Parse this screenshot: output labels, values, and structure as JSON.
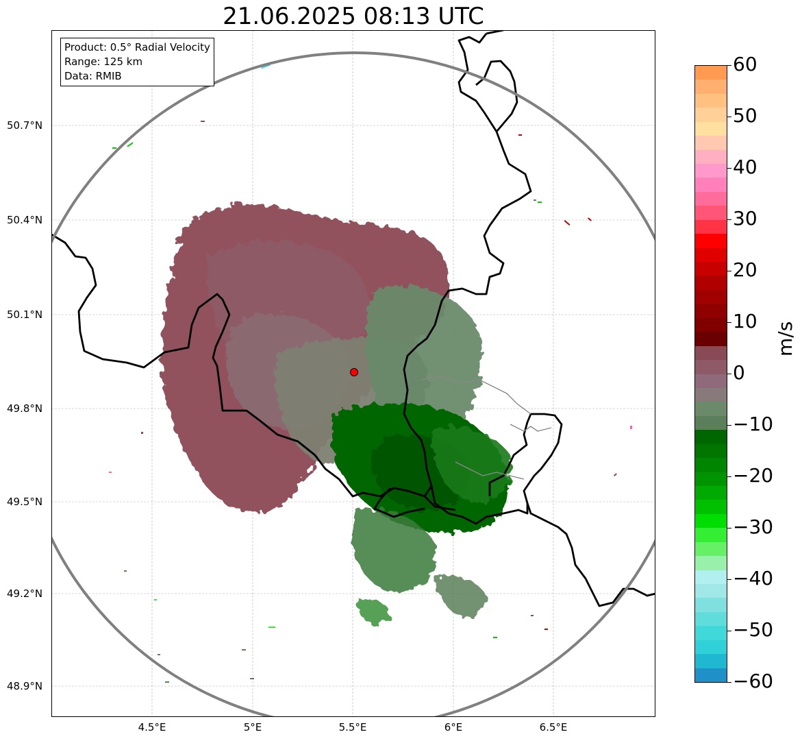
{
  "title": "21.06.2025 08:13 UTC",
  "info": {
    "product": "Product: 0.5° Radial Velocity",
    "range": "Range: 125 km",
    "data": "Data: RMIB"
  },
  "axes": {
    "lat_labels": [
      "50.7°N",
      "50.4°N",
      "50.1°N",
      "49.8°N",
      "49.5°N",
      "49.2°N",
      "48.9°N"
    ],
    "lon_labels": [
      "4.5°E",
      "5°E",
      "5.5°E",
      "6°E",
      "6.5°E"
    ]
  },
  "colorbar": {
    "unit": "m/s",
    "ticks": [
      "60",
      "50",
      "40",
      "30",
      "20",
      "10",
      "0",
      "−10",
      "−20",
      "−30",
      "−40",
      "−50",
      "−60"
    ],
    "range": [
      -60,
      60
    ],
    "colors": [
      "#ff9a50",
      "#ffb070",
      "#ffc080",
      "#ffd098",
      "#ffe0a0",
      "#ffc8b0",
      "#ffb0c0",
      "#ff99cc",
      "#ff80bb",
      "#ff6b9a",
      "#ff5577",
      "#ff3344",
      "#ff0000",
      "#e00000",
      "#c80000",
      "#b00000",
      "#a00000",
      "#900000",
      "#800000",
      "#6a0000",
      "#8a4a55",
      "#8f5a68",
      "#8e6a7a",
      "#887a7a",
      "#6a8a6a",
      "#5a7f5a",
      "#006600",
      "#007500",
      "#008500",
      "#009500",
      "#00aa00",
      "#00c000",
      "#00dd00",
      "#33ee33",
      "#66f066",
      "#99f0aa",
      "#b0f0f0",
      "#a0e8e8",
      "#80e0e0",
      "#60dcdc",
      "#40d8d8",
      "#30d0d8",
      "#20b8d0",
      "#2090c8"
    ]
  },
  "colors": {
    "range_ring": "#808080",
    "border": "#000000",
    "radar_site": "#ff0000",
    "velocity_away": "#8b4a55",
    "velocity_toward": "#006600",
    "near_zero": "#7e7f72"
  },
  "radar_site": {
    "lat": 49.91,
    "lon": 5.51
  },
  "extent": {
    "lon_min": 4.0,
    "lon_max": 7.0,
    "lat_min": 48.8,
    "lat_max": 50.98
  }
}
